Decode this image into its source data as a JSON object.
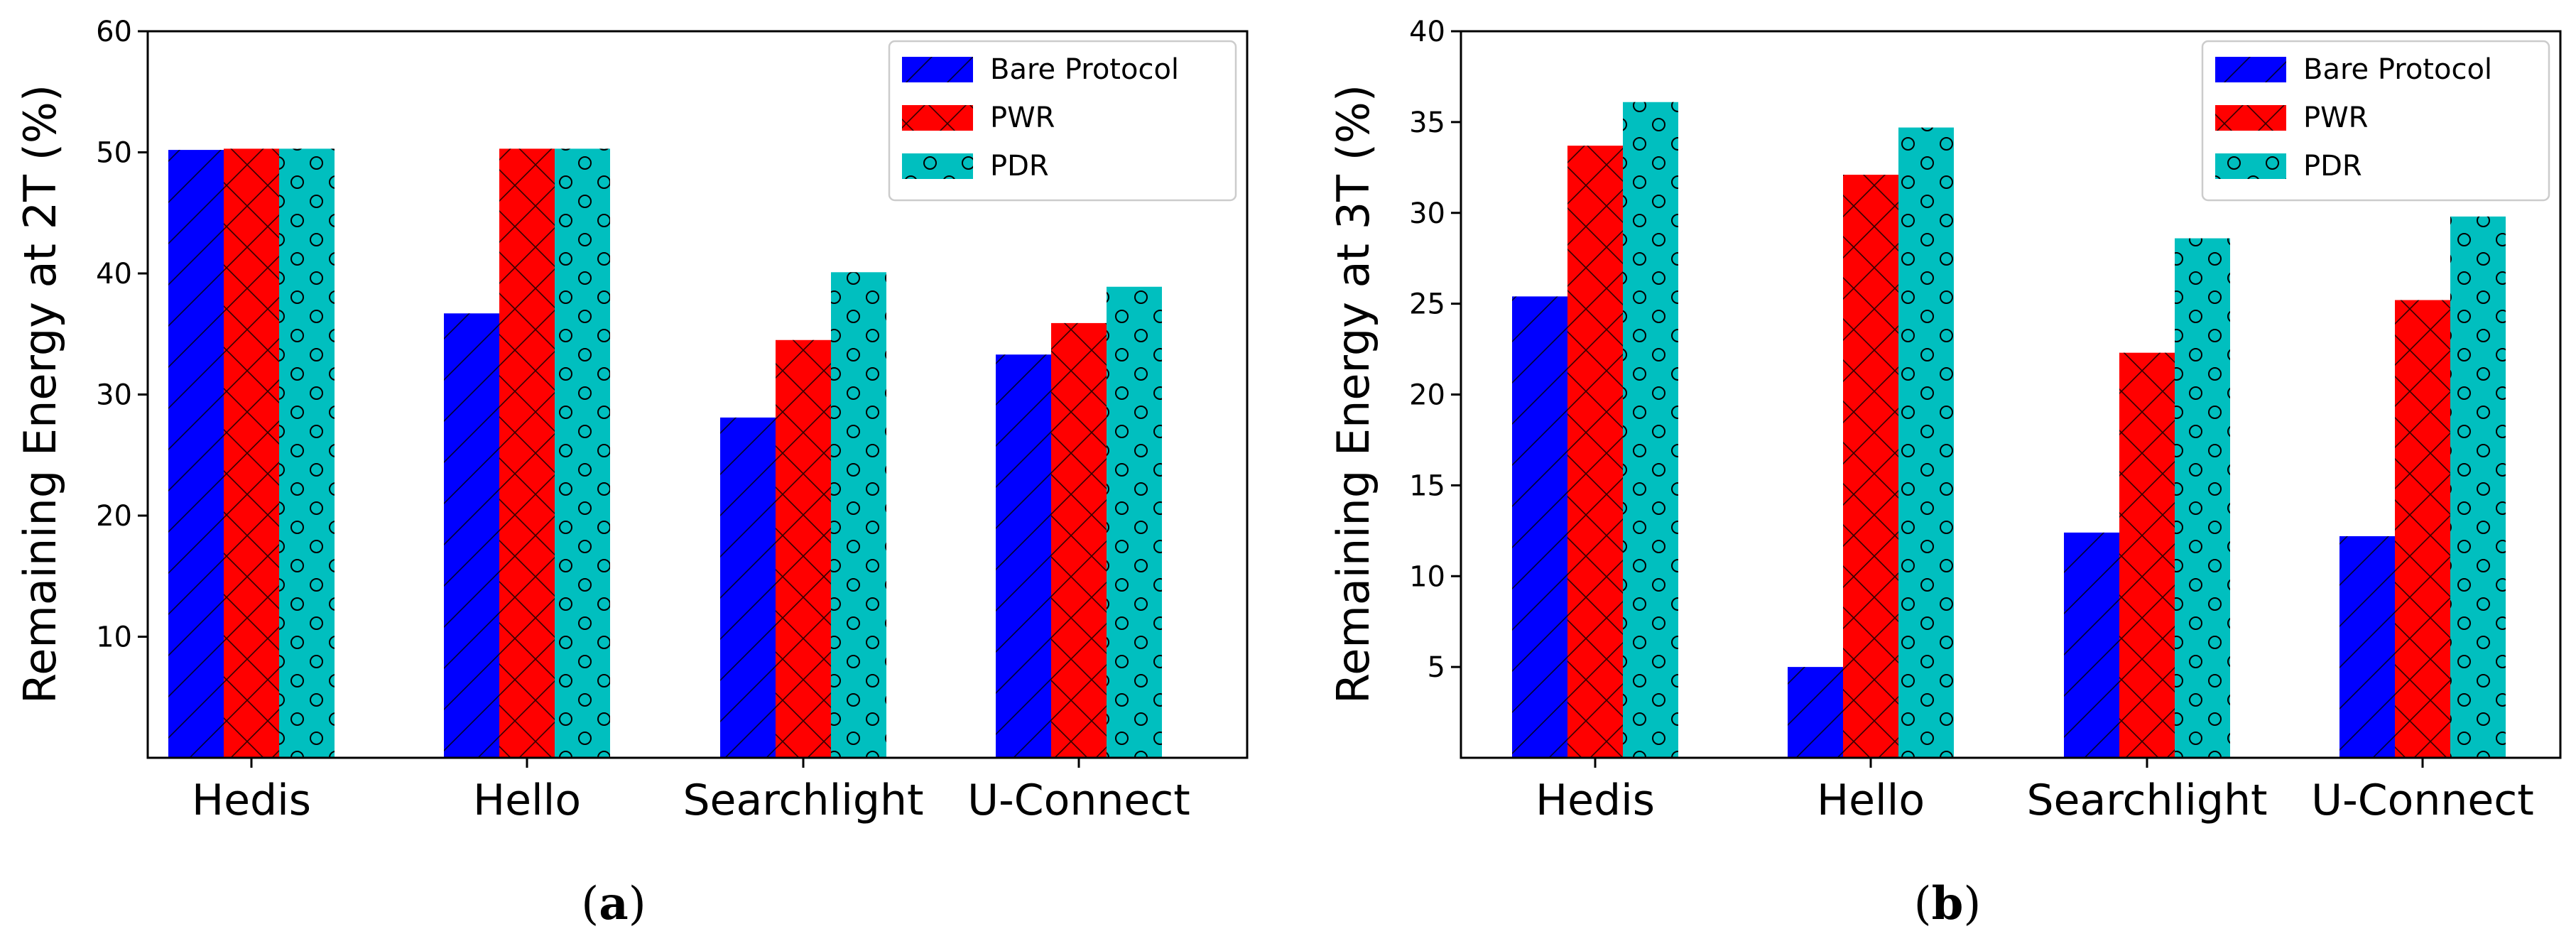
{
  "colors": {
    "bare": "#0000ff",
    "pwr": "#ff0000",
    "pdr": "#00bfbf"
  },
  "chart_data": [
    {
      "type": "bar",
      "panel": "a",
      "caption_open": "(",
      "caption_letter": "a",
      "caption_close": ")",
      "categories": [
        "Hedis",
        "Hello",
        "Searchlight",
        "U-Connect"
      ],
      "ylabel": "Remaining Energy at 2T (%)",
      "ylim": [
        0,
        60
      ],
      "yticks": [
        10,
        20,
        30,
        40,
        50,
        60
      ],
      "legend_position": "top-right",
      "series": [
        {
          "name": "Bare Protocol",
          "key": "bare",
          "pattern": "diag",
          "values": [
            50.2,
            36.7,
            28.1,
            33.3
          ]
        },
        {
          "name": "PWR",
          "key": "pwr",
          "pattern": "cross",
          "values": [
            50.3,
            50.3,
            34.5,
            35.9
          ]
        },
        {
          "name": "PDR",
          "key": "pdr",
          "pattern": "circles",
          "values": [
            50.3,
            50.3,
            40.1,
            38.9
          ]
        }
      ]
    },
    {
      "type": "bar",
      "panel": "b",
      "caption_open": "(",
      "caption_letter": "b",
      "caption_close": ")",
      "categories": [
        "Hedis",
        "Hello",
        "Searchlight",
        "U-Connect"
      ],
      "ylabel": "Remaining Energy at 3T (%)",
      "ylim": [
        0,
        40
      ],
      "yticks": [
        5,
        10,
        15,
        20,
        25,
        30,
        35,
        40
      ],
      "legend_position": "top-right",
      "series": [
        {
          "name": "Bare Protocol",
          "key": "bare",
          "pattern": "diag",
          "values": [
            25.4,
            5.0,
            12.4,
            12.2
          ]
        },
        {
          "name": "PWR",
          "key": "pwr",
          "pattern": "cross",
          "values": [
            33.7,
            32.1,
            22.3,
            25.2
          ]
        },
        {
          "name": "PDR",
          "key": "pdr",
          "pattern": "circles",
          "values": [
            36.1,
            34.7,
            28.6,
            29.8
          ]
        }
      ]
    }
  ]
}
